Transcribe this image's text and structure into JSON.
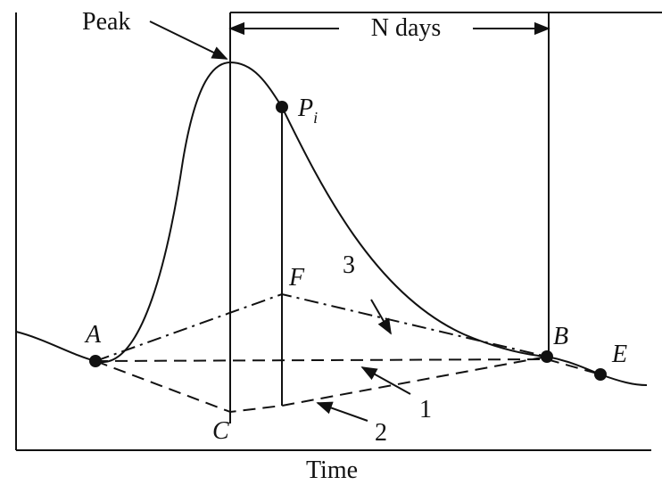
{
  "labels": {
    "peak": "Peak",
    "n_days": "N days",
    "p_main": "P",
    "p_sub": "i",
    "a": "A",
    "b": "B",
    "c": "C",
    "e": "E",
    "f": "F",
    "line_1": "1",
    "line_2": "2",
    "line_3": "3",
    "x_axis": "Time"
  }
}
